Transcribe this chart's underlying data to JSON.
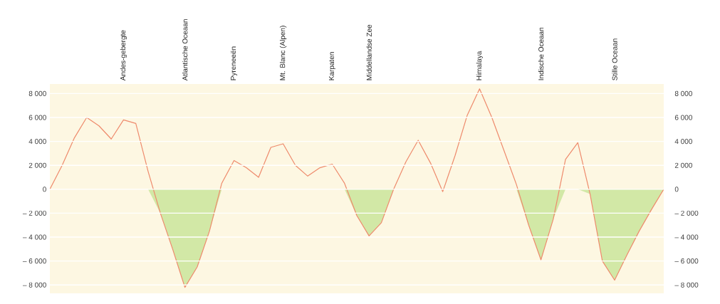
{
  "chart_data": {
    "type": "line",
    "categories": [
      null,
      null,
      null,
      null,
      null,
      null,
      "Andes-gebergte",
      null,
      null,
      null,
      null,
      "Atlantische Oceaan",
      null,
      null,
      null,
      "Pyreneeën",
      null,
      null,
      null,
      "Mt. Blanc (Alpen)",
      null,
      null,
      null,
      "Karpaten",
      null,
      null,
      "Middellandse Zee",
      null,
      null,
      null,
      null,
      null,
      null,
      null,
      null,
      "Himalaya",
      null,
      null,
      null,
      null,
      "Indische Oceaan",
      null,
      null,
      null,
      null,
      null,
      "Stille Oceaan",
      null,
      null,
      null,
      null
    ],
    "series": [
      {
        "type": "area",
        "color": "#d2e8a6",
        "values": [
          0,
          0,
          0,
          0,
          0,
          0,
          0,
          0,
          0,
          -2000,
          -5000,
          -8200,
          -6500,
          -3500,
          0,
          0,
          0,
          0,
          0,
          0,
          0,
          0,
          0,
          0,
          0,
          -2200,
          -3900,
          -2800,
          0,
          0,
          0,
          0,
          0,
          0,
          0,
          0,
          0,
          0,
          0,
          -3000,
          -5900,
          -2500,
          0,
          0,
          -400,
          -6000,
          -7600,
          -5500,
          -3500,
          -1700,
          0
        ]
      },
      {
        "color": "#ee8a6c",
        "values": [
          0,
          2000,
          4300,
          6000,
          5300,
          4200,
          5800,
          5500,
          1500,
          -2000,
          -5000,
          -8200,
          -6500,
          -3500,
          500,
          2400,
          1800,
          1000,
          3500,
          3800,
          2000,
          1100,
          1800,
          2100,
          500,
          -2200,
          -3900,
          -2800,
          0,
          2300,
          4100,
          2200,
          -200,
          2800,
          6200,
          8400,
          6000,
          3200,
          400,
          -3000,
          -5900,
          -2500,
          2500,
          3900,
          -400,
          -6000,
          -7600,
          -5500,
          -3500,
          -1700,
          0
        ]
      }
    ],
    "ylim": [
      -8700,
      8800
    ],
    "yticks": [
      {
        "value": -8000,
        "label": "– 8 000"
      },
      {
        "value": -6000,
        "label": "– 6 000"
      },
      {
        "value": -4000,
        "label": "– 4 000"
      },
      {
        "value": -2000,
        "label": "– 2 000"
      },
      0,
      {
        "value": 2000,
        "label": "2 000"
      },
      {
        "value": 4000,
        "label": "4 000"
      },
      {
        "value": 6000,
        "label": "6 000"
      },
      {
        "value": 8000,
        "label": "8 000"
      }
    ],
    "y2lim": [
      -8700,
      8800
    ],
    "y2ticks": [
      {
        "value": -8000,
        "label": "– 8 000"
      },
      {
        "value": -6000,
        "label": "– 6 000"
      },
      {
        "value": -4000,
        "label": "– 4 000"
      },
      {
        "value": -2000,
        "label": "– 2 000"
      },
      0,
      {
        "value": 2000,
        "label": "2 000"
      },
      {
        "value": 4000,
        "label": "4 000"
      },
      {
        "value": 6000,
        "label": "6 000"
      },
      {
        "value": 8000,
        "label": "8 000"
      }
    ],
    "grid": "y"
  }
}
